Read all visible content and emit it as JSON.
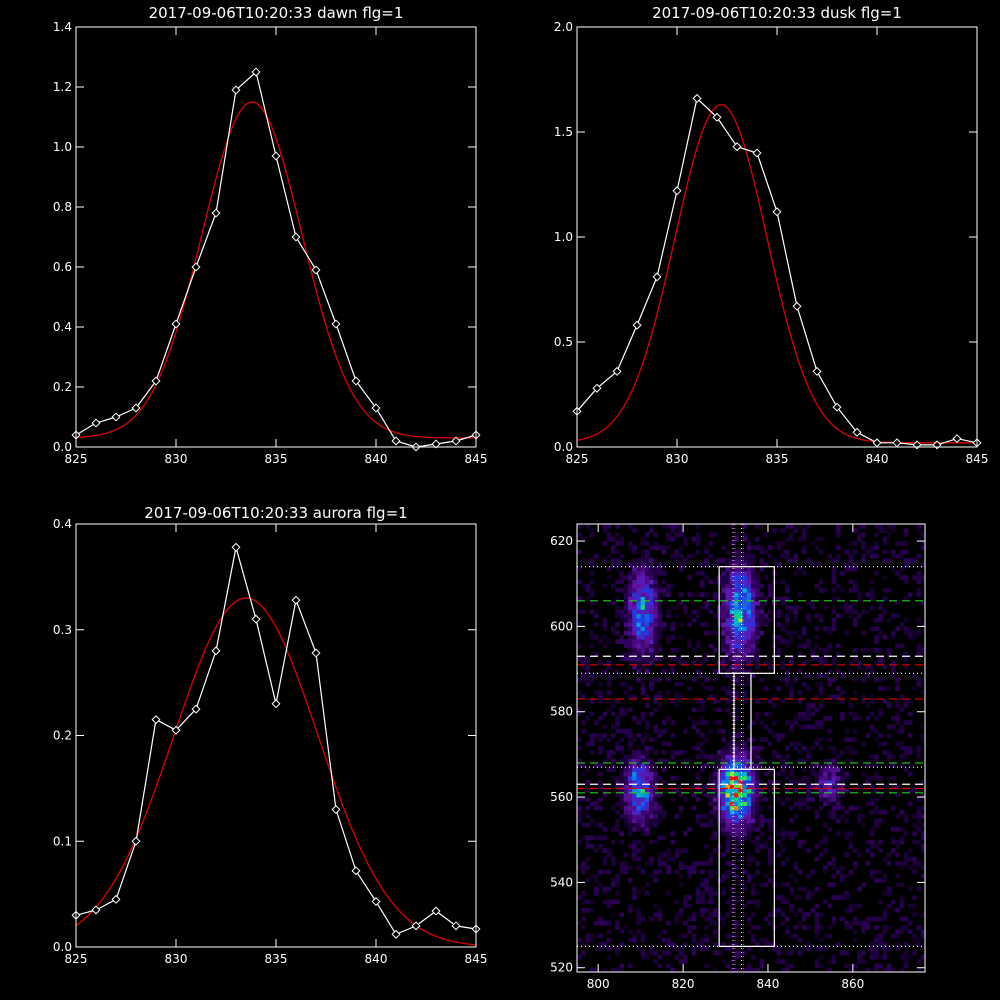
{
  "colors": {
    "background": "#000000",
    "axes": "#ffffff",
    "data": "#ffffff",
    "fit": "#dd0000",
    "green_guide": "#22cc22",
    "red_guide": "#dd0000",
    "magenta_guide": "#cc33cc"
  },
  "chart_data": [
    {
      "type": "line",
      "title": "2017-09-06T10:20:33 dawn flg=1",
      "xlim": [
        825,
        845
      ],
      "ylim": [
        0,
        1.4
      ],
      "xticks": [
        "825",
        "830",
        "835",
        "840",
        "845"
      ],
      "yticks": [
        "0.0",
        "0.2",
        "0.4",
        "0.6",
        "0.8",
        "1.0",
        "1.2",
        "1.4"
      ],
      "series": [
        {
          "style": "data-diamonds",
          "x": [
            825,
            826,
            827,
            828,
            829,
            830,
            831,
            832,
            833,
            834,
            835,
            836,
            837,
            838,
            839,
            840,
            841,
            842,
            843,
            844,
            845
          ],
          "y": [
            0.04,
            0.08,
            0.1,
            0.13,
            0.22,
            0.41,
            0.6,
            0.78,
            1.19,
            1.25,
            0.97,
            0.7,
            0.59,
            0.41,
            0.22,
            0.13,
            0.02,
            0.0,
            0.01,
            0.02,
            0.04
          ]
        },
        {
          "style": "fit",
          "gaussian": {
            "amplitude": 1.12,
            "center": 833.8,
            "sigma": 2.5,
            "offset": 0.03
          }
        }
      ]
    },
    {
      "type": "line",
      "title": "2017-09-06T10:20:33 dusk flg=1",
      "xlim": [
        825,
        845
      ],
      "ylim": [
        0,
        2.0
      ],
      "xticks": [
        "825",
        "830",
        "835",
        "840",
        "845"
      ],
      "yticks": [
        "0.0",
        "0.5",
        "1.0",
        "1.5",
        "2.0"
      ],
      "series": [
        {
          "style": "data-diamonds",
          "x": [
            825,
            826,
            827,
            828,
            829,
            830,
            831,
            832,
            833,
            834,
            835,
            836,
            837,
            838,
            839,
            840,
            841,
            842,
            843,
            844,
            845
          ],
          "y": [
            0.17,
            0.28,
            0.36,
            0.58,
            0.81,
            1.22,
            1.66,
            1.57,
            1.43,
            1.4,
            1.12,
            0.67,
            0.36,
            0.19,
            0.07,
            0.02,
            0.02,
            0.01,
            0.01,
            0.04,
            0.02
          ]
        },
        {
          "style": "fit",
          "gaussian": {
            "amplitude": 1.61,
            "center": 832.2,
            "sigma": 2.3,
            "offset": 0.02
          }
        }
      ]
    },
    {
      "type": "line",
      "title": "2017-09-06T10:20:33 aurora flg=1",
      "xlim": [
        825,
        845
      ],
      "ylim": [
        0,
        0.4
      ],
      "xticks": [
        "825",
        "830",
        "835",
        "840",
        "845"
      ],
      "yticks": [
        "0.0",
        "0.1",
        "0.2",
        "0.3",
        "0.4"
      ],
      "series": [
        {
          "style": "data-diamonds",
          "x": [
            825,
            826,
            827,
            828,
            829,
            830,
            831,
            832,
            833,
            834,
            835,
            836,
            837,
            838,
            839,
            840,
            841,
            842,
            843,
            844,
            845
          ],
          "y": [
            0.03,
            0.035,
            0.045,
            0.1,
            0.215,
            0.205,
            0.225,
            0.28,
            0.378,
            0.31,
            0.23,
            0.328,
            0.278,
            0.13,
            0.072,
            0.043,
            0.012,
            0.02,
            0.034,
            0.02,
            0.017
          ]
        },
        {
          "style": "fit",
          "gaussian": {
            "amplitude": 0.33,
            "center": 833.5,
            "sigma": 3.6,
            "offset": 0.0
          }
        }
      ]
    },
    {
      "type": "heatmap",
      "title": "",
      "xlim": [
        795,
        877
      ],
      "ylim": [
        519,
        624
      ],
      "xticks": [
        "800",
        "820",
        "840",
        "860"
      ],
      "yticks": [
        "520",
        "540",
        "560",
        "580",
        "600",
        "620"
      ],
      "blobs": [
        {
          "x": 810,
          "y": 603,
          "sx": 2.2,
          "sy": 6.5,
          "peak": 0.55
        },
        {
          "x": 833,
          "y": 603,
          "sx": 2.4,
          "sy": 7.0,
          "peak": 0.65
        },
        {
          "x": 809,
          "y": 561,
          "sx": 2.2,
          "sy": 4.5,
          "peak": 0.6
        },
        {
          "x": 832,
          "y": 561,
          "sx": 2.6,
          "sy": 5.0,
          "peak": 1.0
        },
        {
          "x": 854,
          "y": 563,
          "sx": 2.0,
          "sy": 3.0,
          "peak": 0.3
        }
      ],
      "boxes": [
        {
          "x0": 828.5,
          "x1": 841.5,
          "y0": 589,
          "y1": 614
        },
        {
          "x0": 828.5,
          "x1": 841.5,
          "y0": 525,
          "y1": 566.5
        },
        {
          "x0": 832,
          "x1": 836,
          "y0": 566.5,
          "y1": 589
        }
      ],
      "hlines_white_dotted": [
        614,
        589,
        567,
        525
      ],
      "hlines_white_dashed": [
        593,
        563
      ],
      "hlines_green_dashed": [
        606,
        568,
        561
      ],
      "hlines_red_dashed": [
        591,
        583,
        562
      ],
      "vlines_magenta_dotted": [
        832,
        834
      ],
      "vlines_white_dotted": [
        832,
        834
      ]
    }
  ]
}
